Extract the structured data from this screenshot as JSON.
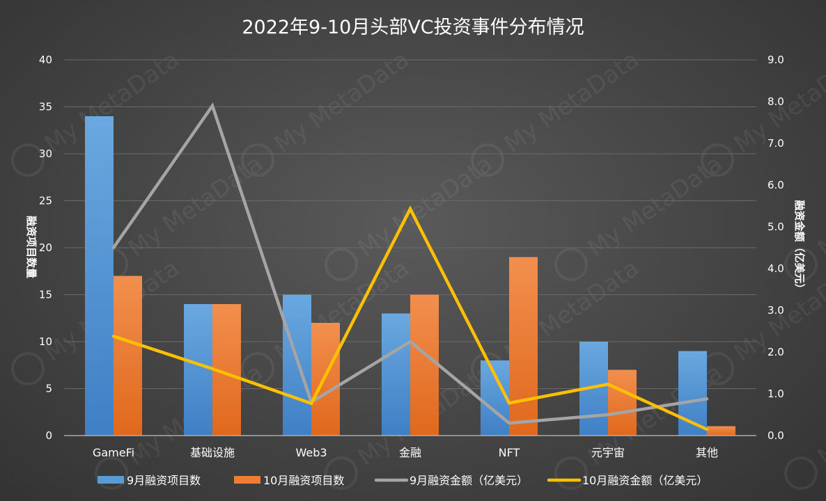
{
  "chart_data": {
    "type": "bar",
    "title": "2022年9-10月头部VC投资事件分布情况",
    "categories": [
      "GameFi",
      "基础设施",
      "Web3",
      "金融",
      "NFT",
      "元宇宙",
      "其他"
    ],
    "ylabel": "融资项目数量",
    "y2label": "融资金额（亿美元）",
    "ylim": [
      0,
      40
    ],
    "y2lim": [
      0,
      9
    ],
    "yticks": [
      "0",
      "5",
      "10",
      "15",
      "20",
      "25",
      "30",
      "35",
      "40"
    ],
    "y2ticks": [
      "0.0",
      "1.0",
      "2.0",
      "3.0",
      "4.0",
      "5.0",
      "6.0",
      "7.0",
      "8.0",
      "9.0"
    ],
    "grid": true,
    "legend_position": "bottom",
    "series": [
      {
        "name": "9月融资项目数",
        "kind": "bar",
        "axis": "left",
        "color": "#5b9bd5",
        "values": [
          34,
          14,
          15,
          13,
          8,
          10,
          9
        ]
      },
      {
        "name": "10月融资项目数",
        "kind": "bar",
        "axis": "left",
        "color": "#ed7d31",
        "values": [
          17,
          14,
          12,
          15,
          19,
          7,
          1
        ]
      },
      {
        "name": "9月融资金额（亿美元）",
        "kind": "line",
        "axis": "right",
        "color": "#a5a5a5",
        "values": [
          4.5,
          7.9,
          0.8,
          2.25,
          0.3,
          0.5,
          0.88
        ]
      },
      {
        "name": "10月融资金额（亿美元）",
        "kind": "line",
        "axis": "right",
        "color": "#ffc000",
        "values": [
          2.38,
          1.6,
          0.77,
          5.43,
          0.78,
          1.23,
          0.15
        ]
      }
    ],
    "watermark": "My MetaData"
  }
}
